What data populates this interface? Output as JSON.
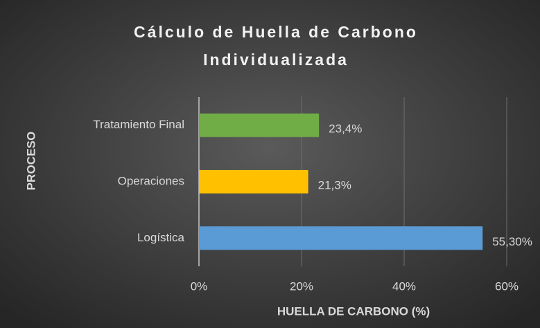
{
  "chart_data": {
    "type": "bar",
    "orientation": "horizontal",
    "title": [
      "Cálculo de Huella de Carbono",
      "Individualizada"
    ],
    "x_label": "HUELLA DE CARBONO (%)",
    "y_label": "PROCESO",
    "categories": [
      "Tratamiento Final",
      "Operaciones",
      "Logística"
    ],
    "values": [
      23.4,
      21.3,
      55.3
    ],
    "value_labels": [
      "23,4%",
      "21,3%",
      "55,30%"
    ],
    "colors": [
      "#70ad47",
      "#ffc000",
      "#5b9bd5"
    ],
    "xlim": [
      0,
      60
    ],
    "xticks": [
      {
        "value": 0,
        "label": "0%"
      },
      {
        "value": 20,
        "label": "20%"
      },
      {
        "value": 40,
        "label": "40%"
      },
      {
        "value": 60,
        "label": "60%"
      }
    ],
    "grid": true
  }
}
